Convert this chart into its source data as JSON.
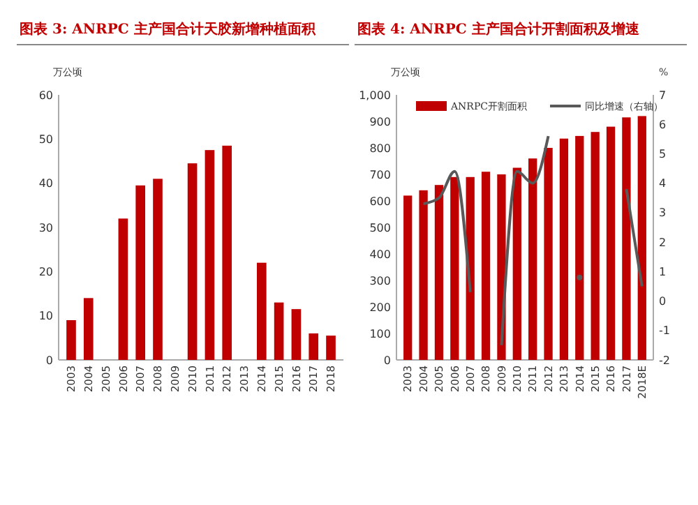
{
  "chart_data": [
    {
      "type": "bar",
      "title": "图表 3: ANRPC 主产国合计天胶新增种植面积",
      "ylabel": "万公顷",
      "categories": [
        "2003",
        "2004",
        "2005",
        "2006",
        "2007",
        "2008",
        "2009",
        "2010",
        "2011",
        "2012",
        "2013",
        "2014",
        "2015",
        "2016",
        "2017",
        "2018"
      ],
      "series": [
        {
          "color": "#c00000",
          "values": [
            9,
            14,
            null,
            32,
            39.5,
            41,
            null,
            44.5,
            47.5,
            48.5,
            null,
            22,
            13,
            11.5,
            6,
            5.5
          ]
        }
      ],
      "ylim": [
        0,
        60
      ],
      "yticks": [
        0,
        10,
        20,
        30,
        40,
        50,
        60
      ],
      "grid": false,
      "legend": false
    },
    {
      "type": "bar",
      "title": "图表 4: ANRPC 主产国合计开割面积及增速",
      "ylabel": "万公顷",
      "y2label": "%",
      "categories": [
        "2003",
        "2004",
        "2005",
        "2006",
        "2007",
        "2008",
        "2009",
        "2010",
        "2011",
        "2012",
        "2013",
        "2014",
        "2015",
        "2016",
        "2017",
        "2018E"
      ],
      "series": [
        {
          "name": "ANRPC开割面积",
          "color": "#c00000",
          "values": [
            620,
            640,
            660,
            690,
            690,
            710,
            700,
            725,
            760,
            800,
            835,
            845,
            860,
            880,
            915,
            920
          ]
        },
        {
          "name": "同比增速（右轴）",
          "type": "line",
          "axis": "y2",
          "color": "#595959",
          "values": [
            null,
            3.3,
            3.5,
            4.4,
            0.3,
            null,
            -1.5,
            4.4,
            4.0,
            5.6,
            null,
            0.8,
            null,
            null,
            3.8,
            0.5
          ]
        }
      ],
      "ylim": [
        0,
        1000
      ],
      "yticks": [
        0,
        100,
        200,
        300,
        400,
        500,
        600,
        700,
        800,
        900,
        {
          "value": 1000,
          "label": "1,000"
        }
      ],
      "y2lim": [
        -2,
        7
      ],
      "y2ticks": [
        -2,
        -1,
        0,
        1,
        2,
        3,
        4,
        5,
        6,
        7
      ],
      "grid": false,
      "legend": "top"
    }
  ]
}
